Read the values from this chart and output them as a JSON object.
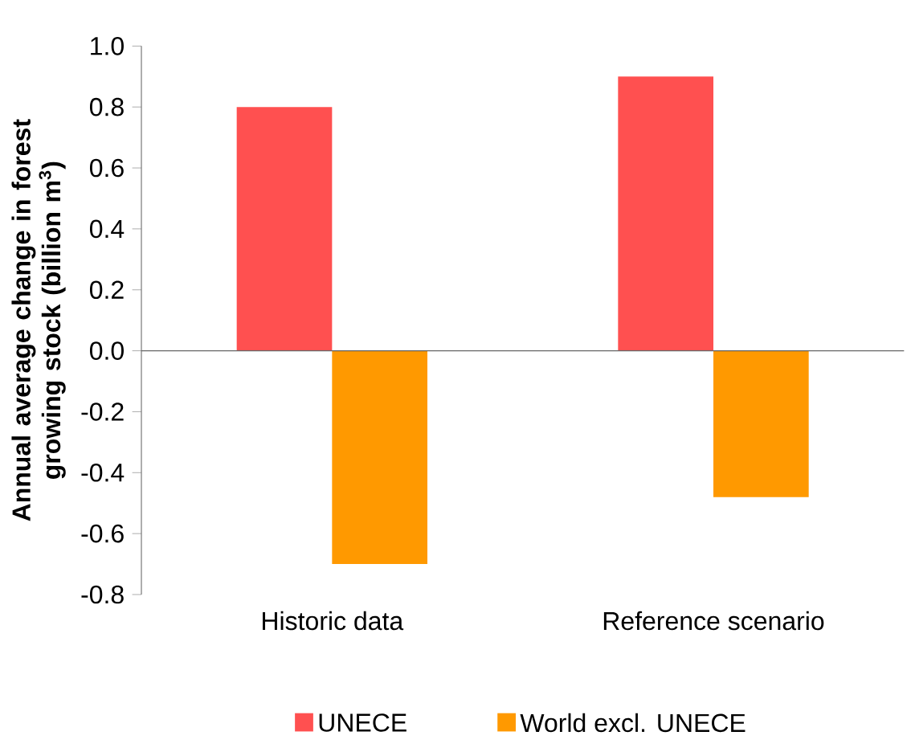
{
  "chart_data": {
    "type": "bar",
    "ylabel": "Annual average change in forest growing stock (billion m$^{3}$)",
    "categories": [
      "Historic data",
      "Reference scenario"
    ],
    "series": [
      {
        "name": "UNECE",
        "color": "#ff5050",
        "values": [
          0.8,
          0.9
        ]
      },
      {
        "name": "World excl. UNECE",
        "color": "#ff9900",
        "values": [
          -0.7,
          -0.48
        ]
      }
    ],
    "ylim": [
      -0.8,
      1.0
    ],
    "yticks": [
      {
        "value": 1.0,
        "label": "1.0"
      },
      {
        "value": 0.8,
        "label": "0.8"
      },
      {
        "value": 0.6,
        "label": "0.6"
      },
      {
        "value": 0.4,
        "label": "0.4"
      },
      {
        "value": 0.2,
        "label": "0.2"
      },
      {
        "value": 0,
        "label": "0.0"
      },
      {
        "value": -0.2,
        "label": "-0.2"
      },
      {
        "value": -0.4,
        "label": "-0.4"
      },
      {
        "value": -0.6,
        "label": "-0.6"
      },
      {
        "value": -0.8,
        "label": "-0.8"
      }
    ],
    "legend": "bottom"
  }
}
